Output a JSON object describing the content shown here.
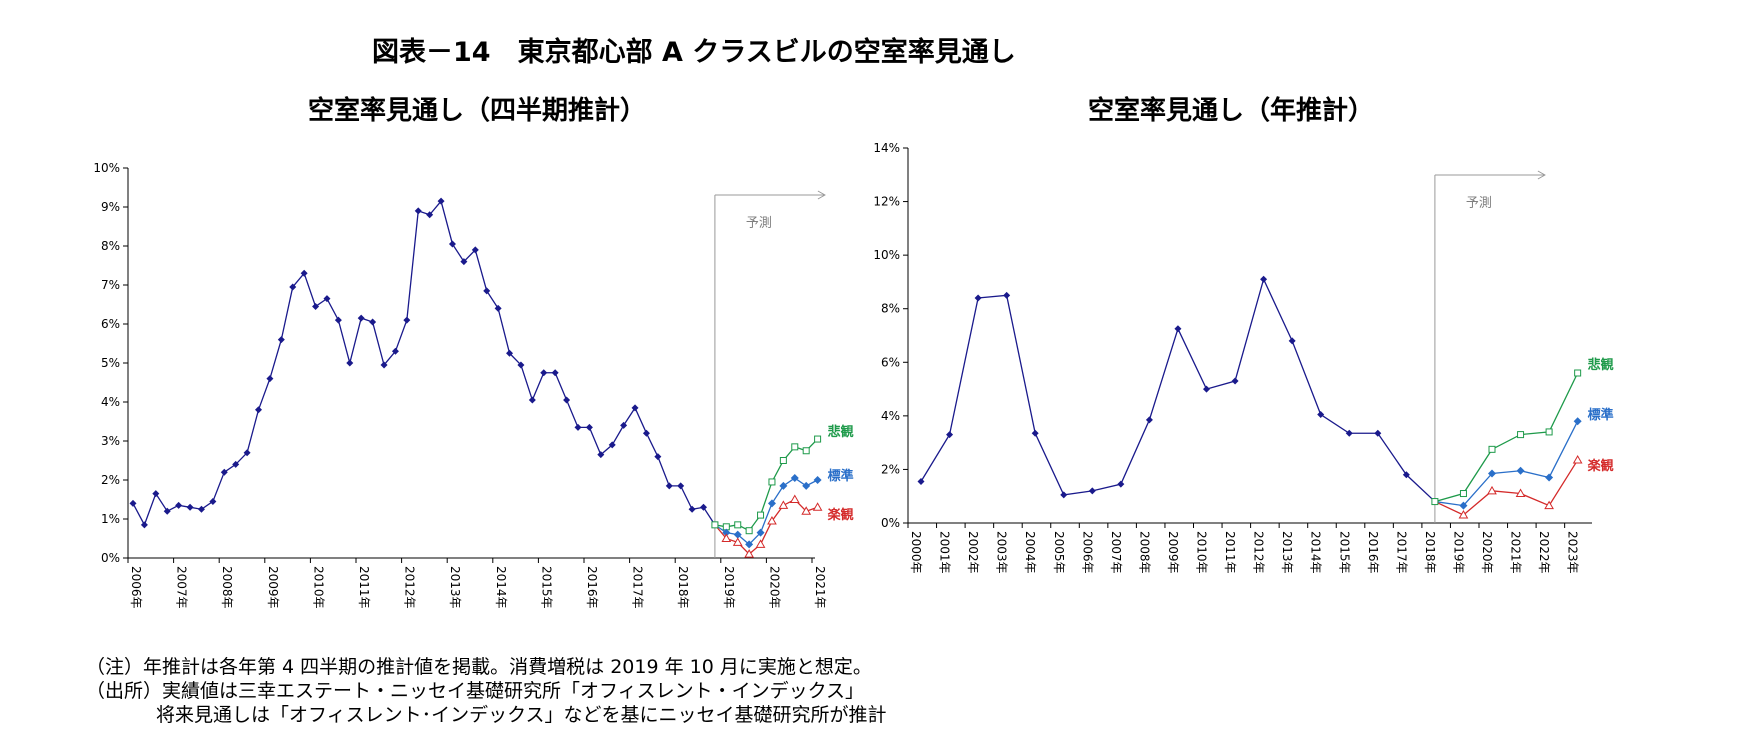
{
  "figure_title": "図表－14　東京都心部 A クラスビルの空室率見通し",
  "notes": {
    "line1": "（注）年推計は各年第 4 四半期の推計値を掲載。消費増税は 2019 年 10 月に実施と想定。",
    "line2": "（出所）実績値は三幸エステート・ニッセイ基礎研究所「オフィスレント・インデックス」",
    "line3": "将来見通しは「オフィスレント･インデックス」などを基にニッセイ基礎研究所が推計"
  },
  "colors": {
    "actual": "#1a1a8c",
    "pessimistic": "#1e9a4a",
    "standard": "#2a6fc9",
    "optimistic": "#d42a2a",
    "forecast_line": "#999999"
  },
  "chart_data": [
    {
      "id": "quarterly",
      "type": "line",
      "title": "空室率見通し（四半期推計）",
      "ylim": [
        0,
        10
      ],
      "yticks": [
        "0%",
        "1%",
        "2%",
        "3%",
        "4%",
        "5%",
        "6%",
        "7%",
        "8%",
        "9%",
        "10%"
      ],
      "x_labels": [
        "2006年",
        "2007年",
        "2008年",
        "2009年",
        "2010年",
        "2011年",
        "2012年",
        "2013年",
        "2014年",
        "2015年",
        "2016年",
        "2017年",
        "2018年",
        "2019年",
        "2020年",
        "2021年"
      ],
      "forecast_label": "予測",
      "actual": [
        1.4,
        0.85,
        1.65,
        1.2,
        1.35,
        1.3,
        1.25,
        1.45,
        2.2,
        2.4,
        2.7,
        3.8,
        4.6,
        5.6,
        6.95,
        7.3,
        6.45,
        6.65,
        6.1,
        5.0,
        6.15,
        6.05,
        4.95,
        5.3,
        6.1,
        8.9,
        8.8,
        9.15,
        8.05,
        7.6,
        7.9,
        6.85,
        6.4,
        5.25,
        4.95,
        4.05,
        4.75,
        4.75,
        4.05,
        3.35,
        3.35,
        2.65,
        2.9,
        3.4,
        3.85,
        3.2,
        2.6,
        1.85,
        1.85,
        1.25,
        1.3,
        0.85
      ],
      "series": [
        {
          "name": "悲観",
          "values": [
            0.85,
            0.8,
            0.85,
            0.7,
            1.1,
            1.95,
            2.5,
            2.85,
            2.75,
            3.05
          ]
        },
        {
          "name": "標準",
          "values": [
            0.85,
            0.65,
            0.6,
            0.35,
            0.65,
            1.4,
            1.85,
            2.05,
            1.85,
            2.0
          ]
        },
        {
          "name": "楽観",
          "values": [
            0.85,
            0.5,
            0.4,
            0.1,
            0.35,
            0.95,
            1.35,
            1.5,
            1.2,
            1.3
          ]
        }
      ]
    },
    {
      "id": "annual",
      "type": "line",
      "title": "空室率見通し（年推計）",
      "ylim": [
        0,
        14
      ],
      "yticks": [
        "0%",
        "2%",
        "4%",
        "6%",
        "8%",
        "10%",
        "12%",
        "14%"
      ],
      "x_labels": [
        "2000年",
        "2001年",
        "2002年",
        "2003年",
        "2004年",
        "2005年",
        "2006年",
        "2007年",
        "2008年",
        "2009年",
        "2010年",
        "2011年",
        "2012年",
        "2013年",
        "2014年",
        "2015年",
        "2016年",
        "2017年",
        "2018年",
        "2019年",
        "2020年",
        "2021年",
        "2022年",
        "2023年"
      ],
      "forecast_label": "予測",
      "actual": [
        1.55,
        3.3,
        8.4,
        8.5,
        3.35,
        1.05,
        1.2,
        1.45,
        3.85,
        7.25,
        5.0,
        5.3,
        9.1,
        6.8,
        4.05,
        3.35,
        3.35,
        1.8,
        0.8
      ],
      "series": [
        {
          "name": "悲観",
          "values": [
            0.8,
            1.1,
            2.75,
            3.3,
            3.4,
            5.6
          ]
        },
        {
          "name": "標準",
          "values": [
            0.8,
            0.65,
            1.85,
            1.95,
            1.7,
            3.8
          ]
        },
        {
          "name": "楽観",
          "values": [
            0.8,
            0.3,
            1.2,
            1.1,
            0.65,
            2.35
          ]
        }
      ]
    }
  ]
}
